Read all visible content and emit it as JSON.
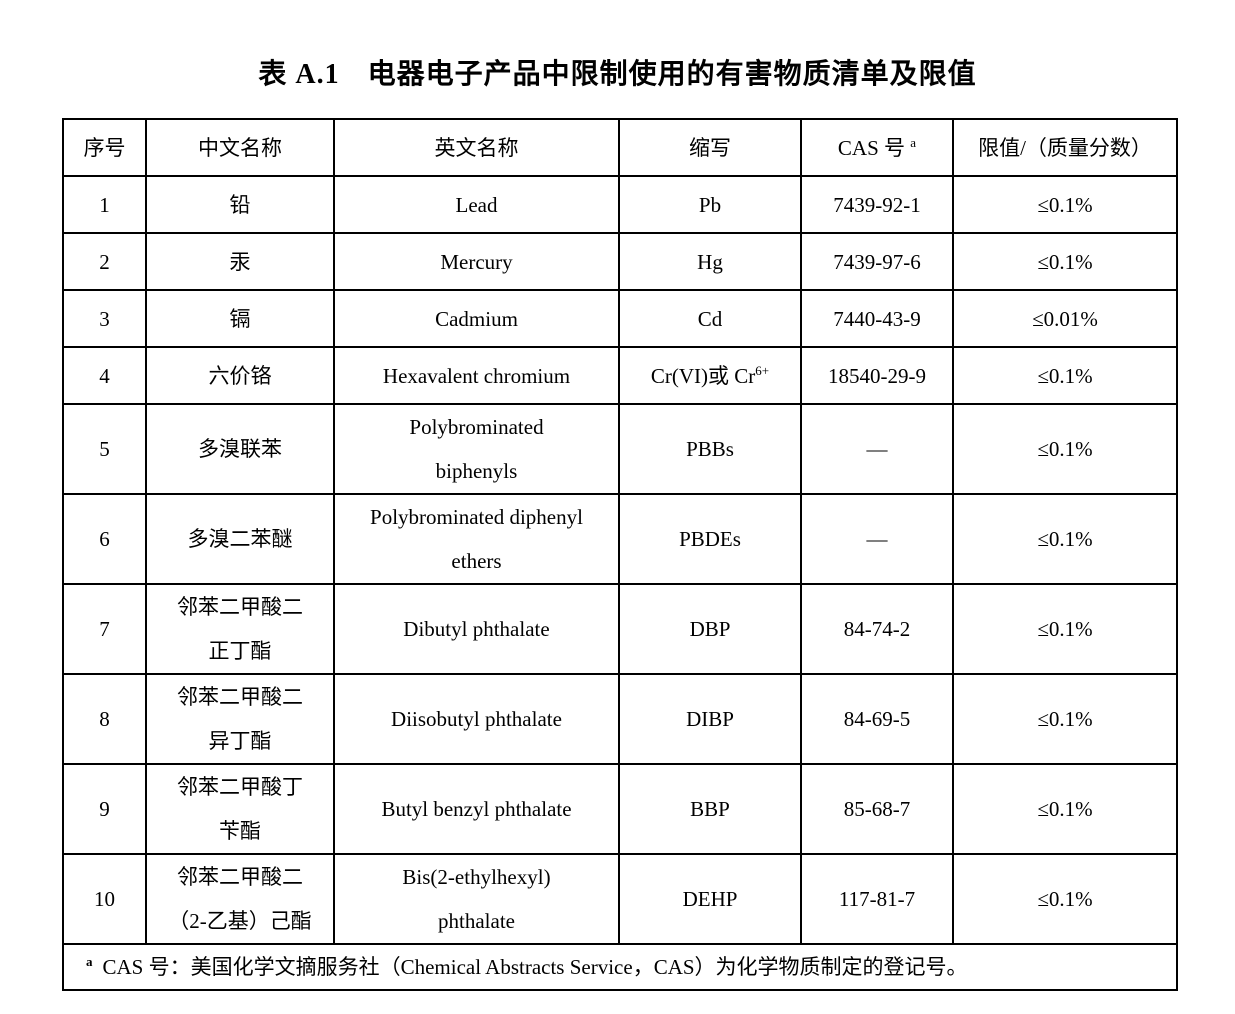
{
  "title": {
    "label": "表 A.1",
    "text": "电器电子产品中限制使用的有害物质清单及限值"
  },
  "table": {
    "headers": {
      "index": "序号",
      "chinese_name": "中文名称",
      "english_name": "英文名称",
      "abbreviation": "缩写",
      "cas_main": "CAS 号",
      "cas_sup": "a",
      "limit": "限值/（质量分数）"
    },
    "rows": [
      {
        "num": "1",
        "cn": [
          "铅"
        ],
        "en": [
          "Lead"
        ],
        "abbr": "Pb",
        "abbr_sup": "",
        "cas": "7439-92-1",
        "limit": "≤0.1%"
      },
      {
        "num": "2",
        "cn": [
          "汞"
        ],
        "en": [
          "Mercury"
        ],
        "abbr": "Hg",
        "abbr_sup": "",
        "cas": "7439-97-6",
        "limit": "≤0.1%"
      },
      {
        "num": "3",
        "cn": [
          "镉"
        ],
        "en": [
          "Cadmium"
        ],
        "abbr": "Cd",
        "abbr_sup": "",
        "cas": "7440-43-9",
        "limit": "≤0.01%"
      },
      {
        "num": "4",
        "cn": [
          "六价铬"
        ],
        "en": [
          "Hexavalent chromium"
        ],
        "abbr": "Cr(VI)或 Cr",
        "abbr_sup": "6+",
        "cas": "18540-29-9",
        "limit": "≤0.1%"
      },
      {
        "num": "5",
        "cn": [
          "多溴联苯"
        ],
        "en": [
          "Polybrominated",
          "biphenyls"
        ],
        "abbr": "PBBs",
        "abbr_sup": "",
        "cas": "—",
        "limit": "≤0.1%"
      },
      {
        "num": "6",
        "cn": [
          "多溴二苯醚"
        ],
        "en": [
          "Polybrominated diphenyl",
          "ethers"
        ],
        "abbr": "PBDEs",
        "abbr_sup": "",
        "cas": "—",
        "limit": "≤0.1%"
      },
      {
        "num": "7",
        "cn": [
          "邻苯二甲酸二",
          "正丁酯"
        ],
        "en": [
          "Dibutyl phthalate"
        ],
        "abbr": "DBP",
        "abbr_sup": "",
        "cas": "84-74-2",
        "limit": "≤0.1%"
      },
      {
        "num": "8",
        "cn": [
          "邻苯二甲酸二",
          "异丁酯"
        ],
        "en": [
          "Diisobutyl phthalate"
        ],
        "abbr": "DIBP",
        "abbr_sup": "",
        "cas": "84-69-5",
        "limit": "≤0.1%"
      },
      {
        "num": "9",
        "cn": [
          "邻苯二甲酸丁",
          "苄酯"
        ],
        "en": [
          "Butyl benzyl phthalate"
        ],
        "abbr": "BBP",
        "abbr_sup": "",
        "cas": "85-68-7",
        "limit": "≤0.1%"
      },
      {
        "num": "10",
        "cn": [
          "邻苯二甲酸二",
          "（2-乙基）己酯"
        ],
        "en": [
          "Bis(2-ethylhexyl)",
          "phthalate"
        ],
        "abbr": "DEHP",
        "abbr_sup": "",
        "cas": "117-81-7",
        "limit": "≤0.1%"
      }
    ],
    "footnote": {
      "sup": "a",
      "text": "CAS 号：美国化学文摘服务社（Chemical Abstracts Service，CAS）为化学物质制定的登记号。"
    }
  }
}
